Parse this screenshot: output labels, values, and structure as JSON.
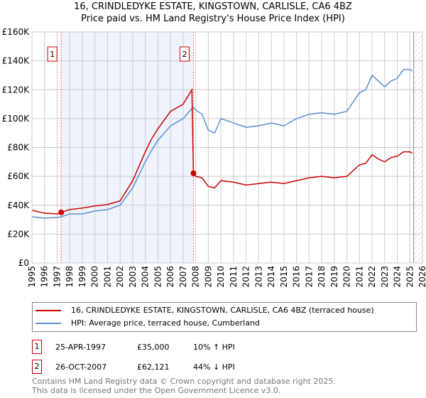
{
  "title": "16, CRINDLEDYKE ESTATE, KINGSTOWN, CARLISLE, CA6 4BZ",
  "subtitle": "Price paid vs. HM Land Registry's House Price Index (HPI)",
  "chart_data": {
    "type": "line",
    "xlim": [
      1995,
      2026
    ],
    "ylim": [
      0,
      160000
    ],
    "x_ticks": [
      "1995",
      "1996",
      "1997",
      "1998",
      "1999",
      "2000",
      "2001",
      "2002",
      "2003",
      "2004",
      "2005",
      "2006",
      "2007",
      "2008",
      "2009",
      "2010",
      "2011",
      "2012",
      "2013",
      "2014",
      "2015",
      "2016",
      "2017",
      "2018",
      "2019",
      "2020",
      "2021",
      "2022",
      "2023",
      "2024",
      "2025",
      "2026"
    ],
    "y_ticks": [
      {
        "v": 0,
        "label": "£0"
      },
      {
        "v": 20000,
        "label": "£20K"
      },
      {
        "v": 40000,
        "label": "£40K"
      },
      {
        "v": 60000,
        "label": "£60K"
      },
      {
        "v": 80000,
        "label": "£80K"
      },
      {
        "v": 100000,
        "label": "£100K"
      },
      {
        "v": 120000,
        "label": "£120K"
      },
      {
        "v": 140000,
        "label": "£140K"
      },
      {
        "v": 160000,
        "label": "£160K"
      }
    ],
    "grid": true,
    "series": [
      {
        "name": "16, CRINDLEDYKE ESTATE, KINGSTOWN, CARLISLE, CA6 4BZ (terraced house)",
        "color": "#cc0000",
        "x": [
          1995,
          1996,
          1997,
          1997.32,
          1998,
          1999,
          2000,
          2001,
          2002,
          2003,
          2004,
          2004.5,
          2005,
          2006,
          2007,
          2007.7,
          2007.82,
          2008,
          2008.5,
          2009,
          2009.5,
          2010,
          2011,
          2012,
          2013,
          2014,
          2015,
          2016,
          2017,
          2018,
          2019,
          2020,
          2021,
          2021.5,
          2022,
          2022.5,
          2023,
          2023.5,
          2024,
          2024.5,
          2025,
          2025.2
        ],
        "y": [
          36500,
          34500,
          34000,
          35000,
          37000,
          38000,
          39500,
          40500,
          43000,
          57000,
          77000,
          86000,
          93000,
          105000,
          110000,
          120000,
          62121,
          60000,
          59000,
          53000,
          52000,
          57000,
          56000,
          54000,
          55000,
          56000,
          55000,
          57000,
          59000,
          60000,
          59000,
          60000,
          68000,
          69000,
          75000,
          72000,
          70000,
          73000,
          74000,
          77000,
          77000,
          76000
        ]
      },
      {
        "name": "HPI: Average price, terraced house, Cumberland",
        "color": "#5b8fd4",
        "x": [
          1995,
          1996,
          1997,
          1997.32,
          1998,
          1999,
          2000,
          2001,
          2002,
          2003,
          2004,
          2004.5,
          2005,
          2006,
          2007,
          2007.8,
          2008,
          2008.5,
          2009,
          2009.5,
          2010,
          2011,
          2012,
          2013,
          2014,
          2015,
          2016,
          2017,
          2018,
          2019,
          2020,
          2021,
          2021.5,
          2022,
          2022.5,
          2023,
          2023.5,
          2024,
          2024.5,
          2025,
          2025.2
        ],
        "y": [
          32000,
          31000,
          31500,
          32000,
          34000,
          34000,
          36000,
          37000,
          40000,
          52000,
          70000,
          78000,
          85000,
          95000,
          100000,
          108000,
          106000,
          103000,
          92000,
          90000,
          100000,
          97000,
          94000,
          95000,
          97000,
          95000,
          100000,
          103000,
          104000,
          103000,
          105000,
          118000,
          120000,
          130000,
          126000,
          122000,
          126000,
          128000,
          134000,
          134000,
          133000
        ]
      }
    ],
    "sales": [
      {
        "id": "1",
        "x": 1997.32,
        "y": 35000
      },
      {
        "id": "2",
        "x": 2007.82,
        "y": 62121
      }
    ],
    "shaded_range": [
      1997.32,
      2007.82
    ],
    "hatched_from": 2025.3
  },
  "legend": {
    "property": "16, CRINDLEDYKE ESTATE, KINGSTOWN, CARLISLE, CA6 4BZ (terraced house)",
    "hpi": "HPI: Average price, terraced house, Cumberland"
  },
  "transactions": [
    {
      "id": "1",
      "date": "25-APR-1997",
      "price": "£35,000",
      "hpi": "10% ↑ HPI"
    },
    {
      "id": "2",
      "date": "26-OCT-2007",
      "price": "£62,121",
      "hpi": "44% ↓ HPI"
    }
  ],
  "footer": [
    "Contains HM Land Registry data © Crown copyright and database right 2025.",
    "This data is licensed under the Open Government Licence v3.0."
  ]
}
